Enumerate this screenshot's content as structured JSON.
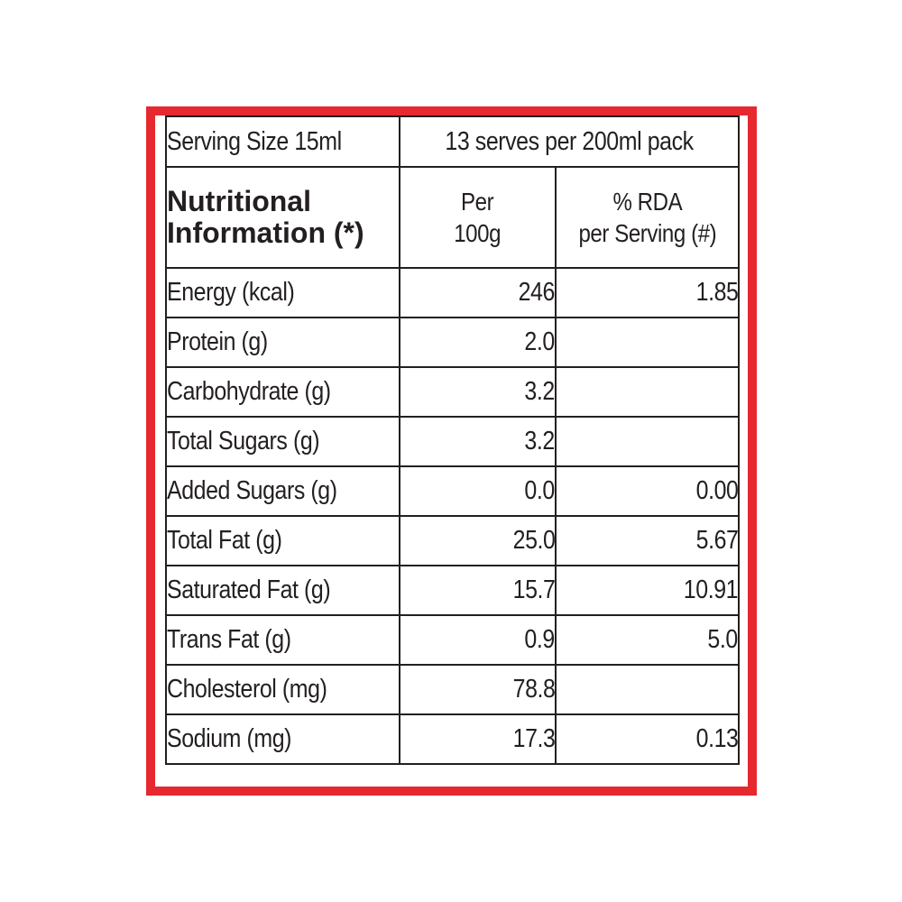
{
  "serving": {
    "size_label": "Serving Size 15ml",
    "pack_label": "13 serves per 200ml pack"
  },
  "header": {
    "nutrition_line1": "Nutritional",
    "nutrition_line2": "Information (*)",
    "per_line1": "Per",
    "per_line2": "100g",
    "rda_line1": "% RDA",
    "rda_line2": "per Serving (#)"
  },
  "rows": [
    {
      "label": "Energy (kcal)",
      "per100": "246",
      "rda": "1.85"
    },
    {
      "label": "Protein (g)",
      "per100": "2.0",
      "rda": ""
    },
    {
      "label": "Carbohydrate (g)",
      "per100": "3.2",
      "rda": ""
    },
    {
      "label": "Total Sugars (g)",
      "per100": "3.2",
      "rda": ""
    },
    {
      "label": "Added Sugars (g)",
      "per100": "0.0",
      "rda": "0.00"
    },
    {
      "label": "Total Fat (g)",
      "per100": "25.0",
      "rda": "5.67"
    },
    {
      "label": "Saturated Fat (g)",
      "per100": "15.7",
      "rda": "10.91"
    },
    {
      "label": "Trans Fat (g)",
      "per100": "0.9",
      "rda": "5.0"
    },
    {
      "label": "Cholesterol (mg)",
      "per100": "78.8",
      "rda": ""
    },
    {
      "label": "Sodium (mg)",
      "per100": "17.3",
      "rda": "0.13"
    }
  ],
  "colors": {
    "frame": "#e6282f",
    "text": "#231f20",
    "background": "#ffffff"
  }
}
